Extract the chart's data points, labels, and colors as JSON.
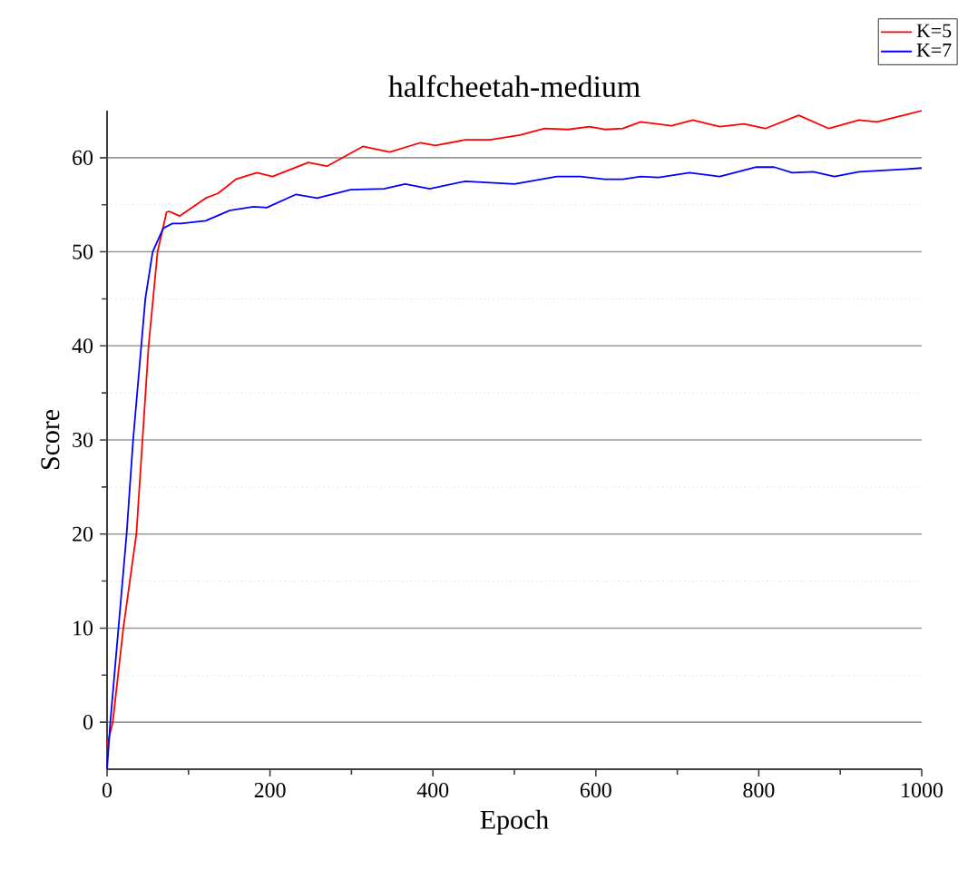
{
  "chart_data": {
    "type": "line",
    "title": "halfcheetah-medium",
    "xlabel": "Epoch",
    "ylabel": "Score",
    "xlim": [
      0,
      1000
    ],
    "ylim": [
      -5,
      65
    ],
    "xticks": [
      0,
      200,
      400,
      600,
      800,
      1000
    ],
    "yticks": [
      0,
      10,
      20,
      30,
      40,
      50,
      60
    ],
    "grid": "y",
    "legend": "top right",
    "marker": "none",
    "line_style": "solid",
    "series": [
      {
        "name": "K=5",
        "color": "#ff0000",
        "x": [
          0,
          7,
          20,
          36,
          51,
          62,
          73,
          76,
          84,
          89,
          121,
          136,
          158,
          184,
          203,
          247,
          270,
          314,
          347,
          385,
          403,
          440,
          470,
          507,
          537,
          566,
          592,
          611,
          633,
          655,
          693,
          719,
          752,
          782,
          808,
          849,
          886,
          923,
          945,
          982,
          1000
        ],
        "values": [
          -2.5,
          0,
          10,
          20,
          40,
          50,
          54.2,
          54.3,
          54.0,
          53.8,
          55.7,
          56.2,
          57.7,
          58.4,
          58.0,
          59.5,
          59.1,
          61.2,
          60.6,
          61.6,
          61.3,
          61.9,
          61.9,
          62.4,
          63.1,
          63.0,
          63.3,
          63.0,
          63.1,
          63.8,
          63.4,
          64.0,
          63.3,
          63.6,
          63.1,
          64.5,
          63.1,
          64.0,
          63.8,
          64.6,
          65.0
        ]
      },
      {
        "name": "K=7",
        "color": "#0000ff",
        "x": [
          0,
          4,
          14,
          24,
          32,
          42,
          47,
          56,
          69,
          80,
          91,
          121,
          151,
          180,
          196,
          232,
          258,
          299,
          340,
          366,
          396,
          440,
          500,
          552,
          581,
          611,
          633,
          655,
          677,
          715,
          752,
          797,
          819,
          841,
          867,
          893,
          923,
          982,
          1000
        ],
        "values": [
          -5,
          0,
          10,
          20,
          30,
          40,
          45,
          50,
          52.5,
          53.0,
          53.0,
          53.3,
          54.4,
          54.8,
          54.7,
          56.1,
          55.7,
          56.6,
          56.7,
          57.2,
          56.7,
          57.5,
          57.2,
          58.0,
          58.0,
          57.7,
          57.7,
          58.0,
          57.9,
          58.4,
          58.0,
          59.0,
          59.0,
          58.4,
          58.5,
          58.0,
          58.5,
          58.8,
          58.9
        ]
      }
    ]
  }
}
